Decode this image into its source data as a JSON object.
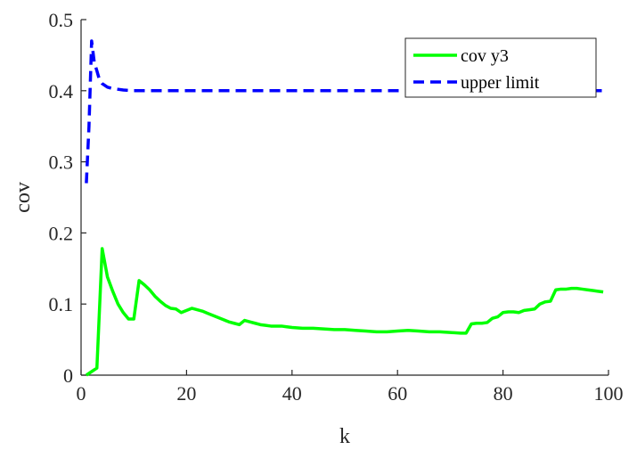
{
  "chart_data": {
    "type": "line",
    "xlabel": "k",
    "ylabel": "cov",
    "xlim": [
      0,
      100
    ],
    "ylim": [
      0,
      0.5
    ],
    "xticks": [
      0,
      20,
      40,
      60,
      80,
      100
    ],
    "yticks": [
      0,
      0.1,
      0.2,
      0.3,
      0.4,
      0.5
    ],
    "xtick_labels": [
      "0",
      "20",
      "40",
      "60",
      "80",
      "100"
    ],
    "ytick_labels": [
      "0",
      "0.1",
      "0.2",
      "0.3",
      "0.4",
      "0.5"
    ],
    "grid": false,
    "box": "open-top-right",
    "legend_position": "top-right",
    "series": [
      {
        "name": "cov y3",
        "color": "#00ff00",
        "style": "solid",
        "x": [
          1,
          2,
          3,
          4,
          5,
          6,
          7,
          8,
          9,
          10,
          11,
          12,
          13,
          14,
          15,
          16,
          17,
          18,
          19,
          20,
          21,
          22,
          23,
          24,
          25,
          26,
          27,
          28,
          29,
          30,
          31,
          32,
          33,
          34,
          35,
          36,
          37,
          38,
          39,
          40,
          42,
          44,
          46,
          48,
          50,
          52,
          54,
          56,
          58,
          60,
          62,
          64,
          66,
          68,
          70,
          72,
          73,
          74,
          75,
          76,
          77,
          78,
          79,
          80,
          81,
          82,
          83,
          84,
          85,
          86,
          87,
          88,
          89,
          90,
          91,
          92,
          93,
          94,
          95,
          96,
          97,
          98,
          99
        ],
        "y": [
          0.0,
          0.005,
          0.01,
          0.178,
          0.138,
          0.118,
          0.1,
          0.088,
          0.079,
          0.079,
          0.133,
          0.127,
          0.12,
          0.111,
          0.104,
          0.098,
          0.094,
          0.093,
          0.088,
          0.091,
          0.094,
          0.092,
          0.09,
          0.087,
          0.084,
          0.081,
          0.078,
          0.075,
          0.073,
          0.071,
          0.077,
          0.075,
          0.073,
          0.071,
          0.07,
          0.069,
          0.069,
          0.069,
          0.068,
          0.067,
          0.066,
          0.066,
          0.065,
          0.064,
          0.064,
          0.063,
          0.062,
          0.061,
          0.061,
          0.062,
          0.063,
          0.062,
          0.061,
          0.061,
          0.06,
          0.059,
          0.059,
          0.072,
          0.073,
          0.073,
          0.074,
          0.08,
          0.082,
          0.088,
          0.089,
          0.089,
          0.088,
          0.091,
          0.092,
          0.093,
          0.1,
          0.103,
          0.104,
          0.12,
          0.121,
          0.121,
          0.122,
          0.122,
          0.121,
          0.12,
          0.119,
          0.118,
          0.117
        ]
      },
      {
        "name": "upper limit",
        "color": "#0000ff",
        "style": "dashed",
        "x": [
          1,
          1.5,
          2,
          2.5,
          3,
          3.5,
          4,
          5,
          6,
          7,
          8,
          10,
          15,
          20,
          30,
          40,
          50,
          60,
          70,
          80,
          90,
          99
        ],
        "y": [
          0.27,
          0.35,
          0.47,
          0.44,
          0.428,
          0.415,
          0.41,
          0.405,
          0.403,
          0.402,
          0.401,
          0.4,
          0.4,
          0.4,
          0.4,
          0.4,
          0.4,
          0.4,
          0.4,
          0.4,
          0.4,
          0.4
        ]
      }
    ]
  }
}
